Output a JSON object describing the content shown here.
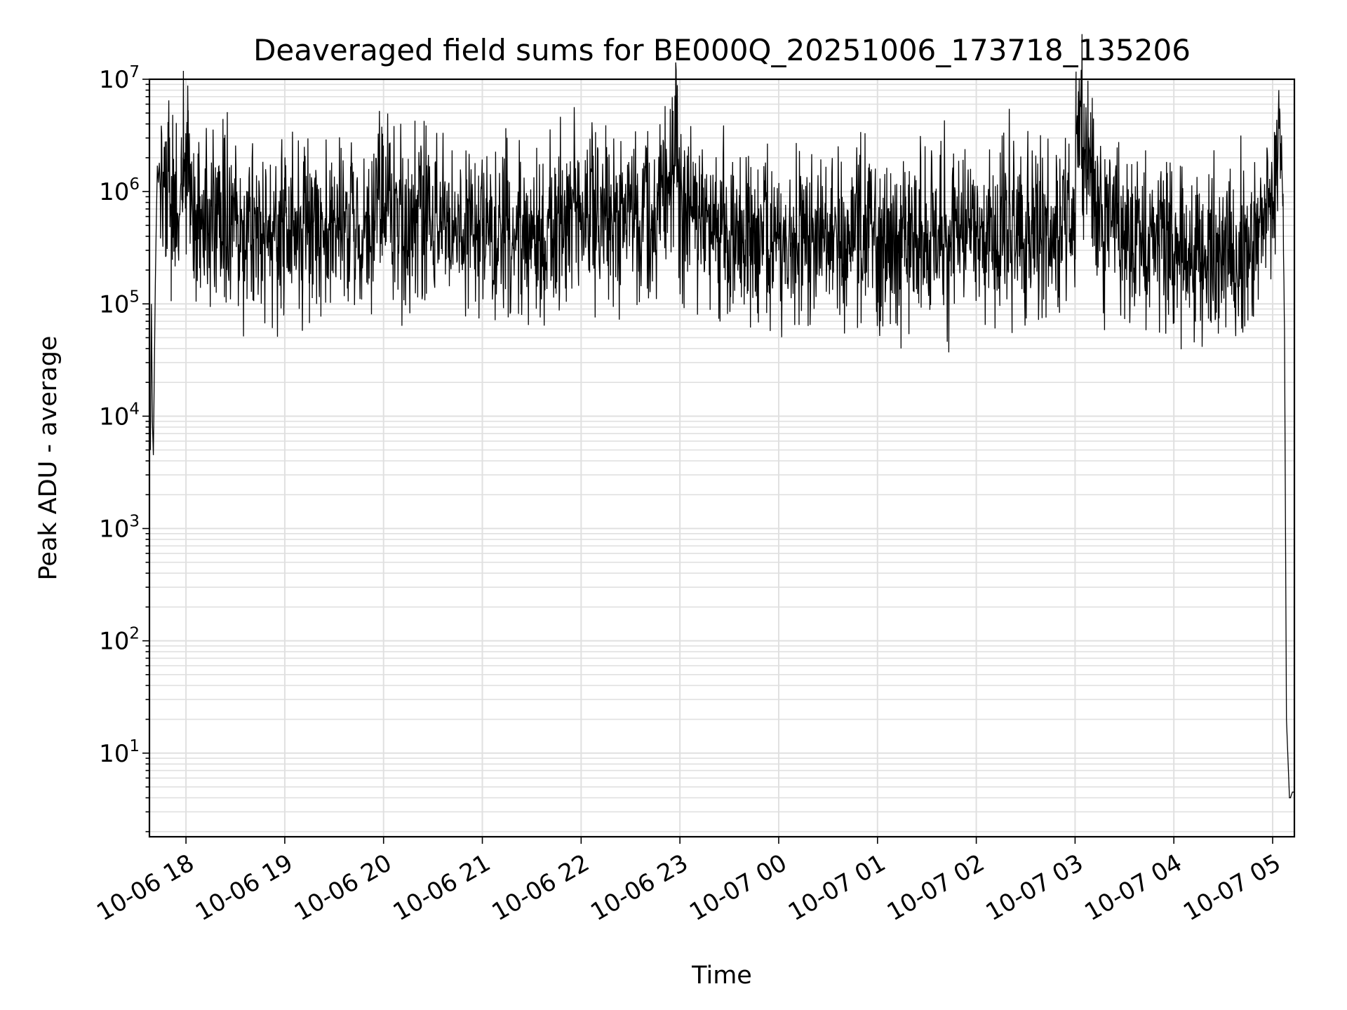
{
  "chart_data": {
    "type": "line",
    "title": "Deaveraged field sums for BE000Q_20251006_173718_135206",
    "xlabel": "Time",
    "ylabel": "Peak ADU - average",
    "yscale": "log",
    "ylim": [
      1.8,
      10000000
    ],
    "xlim_hours": [
      -0.37,
      11.22
    ],
    "grid": true,
    "line_color": "#000000",
    "grid_color": "#e0e0e0",
    "x_ticks": [
      {
        "label": "10-06 18",
        "hour": 0
      },
      {
        "label": "10-06 19",
        "hour": 1
      },
      {
        "label": "10-06 20",
        "hour": 2
      },
      {
        "label": "10-06 21",
        "hour": 3
      },
      {
        "label": "10-06 22",
        "hour": 4
      },
      {
        "label": "10-06 23",
        "hour": 5
      },
      {
        "label": "10-07 00",
        "hour": 6
      },
      {
        "label": "10-07 01",
        "hour": 7
      },
      {
        "label": "10-07 02",
        "hour": 8
      },
      {
        "label": "10-07 03",
        "hour": 9
      },
      {
        "label": "10-07 04",
        "hour": 10
      },
      {
        "label": "10-07 05",
        "hour": 11
      }
    ],
    "y_ticks": [
      {
        "base": "10",
        "exp": "1",
        "value": 10
      },
      {
        "base": "10",
        "exp": "2",
        "value": 100
      },
      {
        "base": "10",
        "exp": "3",
        "value": 1000
      },
      {
        "base": "10",
        "exp": "4",
        "value": 10000
      },
      {
        "base": "10",
        "exp": "5",
        "value": 100000
      },
      {
        "base": "10",
        "exp": "6",
        "value": 1000000
      },
      {
        "base": "10",
        "exp": "7",
        "value": 10000000
      }
    ],
    "series": [
      {
        "name": "Peak ADU - average",
        "x_hours": [
          -0.37,
          -0.36,
          -0.35,
          -0.34,
          -0.33,
          -0.31,
          -0.3,
          -0.29,
          -0.28,
          -0.27,
          -0.26,
          -0.25,
          -0.24,
          -0.23,
          -0.22,
          -0.2,
          -0.18,
          -0.15,
          -0.12,
          -0.1,
          -0.08,
          -0.05,
          -0.03,
          0.0,
          0.02,
          0.05,
          0.08,
          0.1,
          0.15,
          0.2,
          0.3,
          0.5,
          0.75,
          1.0,
          1.25,
          1.5,
          1.75,
          2.0,
          2.25,
          2.5,
          2.75,
          3.0,
          3.25,
          3.5,
          3.75,
          4.0,
          4.25,
          4.5,
          4.75,
          4.97,
          5.0,
          5.25,
          5.5,
          5.75,
          6.0,
          6.25,
          6.5,
          6.75,
          7.0,
          7.25,
          7.5,
          7.75,
          8.0,
          8.25,
          8.5,
          8.75,
          9.0,
          9.01,
          9.25,
          9.5,
          9.75,
          10.0,
          10.25,
          10.5,
          10.75,
          10.9,
          11.0,
          11.05,
          11.1,
          11.12,
          11.14,
          11.17,
          11.18,
          11.2,
          11.22
        ],
        "values": [
          12000,
          5000,
          100000,
          9000,
          4500,
          150000,
          600000,
          1700000,
          1200000,
          1800000,
          1000000,
          2000000,
          800000,
          1500000,
          2500000,
          900000,
          1500000,
          600000,
          800000,
          900000,
          600000,
          1200000,
          2000000,
          800000,
          5000000,
          500000,
          600000,
          400000,
          700000,
          500000,
          600000,
          550000,
          500000,
          600000,
          500000,
          550000,
          500000,
          600000,
          550000,
          550000,
          500000,
          400000,
          450000,
          420000,
          500000,
          650000,
          600000,
          650000,
          600000,
          2600000,
          600000,
          500000,
          450000,
          450000,
          300000,
          380000,
          350000,
          400000,
          400000,
          380000,
          420000,
          400000,
          430000,
          450000,
          480000,
          500000,
          650000,
          4000000,
          550000,
          450000,
          420000,
          280000,
          250000,
          220000,
          300000,
          600000,
          900000,
          1500000,
          1000000,
          60000,
          20,
          4,
          4,
          4.5,
          4.5
        ]
      }
    ]
  }
}
